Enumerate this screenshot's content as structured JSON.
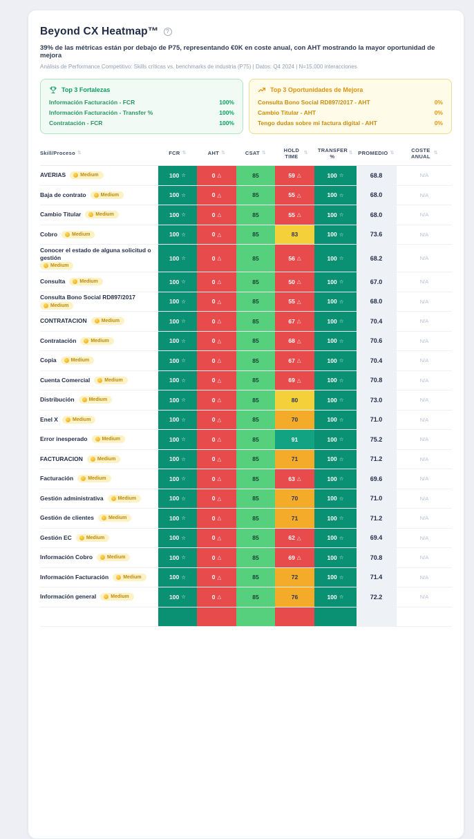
{
  "colors": {
    "green_cell": "#0a9174",
    "red_cell": "#e84b4b",
    "light_green_cell": "#57d07e",
    "teal_cell": "#11a382",
    "yellow_cell": "#f4d03a",
    "amber_cell": "#f3ab29",
    "strength_accent": "#0f9f63",
    "opportunity_accent": "#e0930c",
    "badge_bg": "#fdf2c5",
    "page_bg": "#edeff4"
  },
  "icons": {
    "star": "☆",
    "warn": "△",
    "sort": "⇅",
    "help": "?"
  },
  "header": {
    "title": "Beyond CX Heatmap™",
    "subtitle": "39% de las métricas están por debajo de P75, representando €0K en coste anual, con AHT mostrando la mayor oportunidad de mejora",
    "meta": "Análisis de Performance Competitivo: Skills críticas vs. benchmarks de industria (P75) | Datos: Q4 2024 | N=15,000 interacciones"
  },
  "strengths_card": {
    "title": "Top 3 Fortalezas",
    "items": [
      {
        "label": "Información Facturación - FCR",
        "value": "100%"
      },
      {
        "label": "Información Facturación - Transfer %",
        "value": "100%"
      },
      {
        "label": "Contratación - FCR",
        "value": "100%"
      }
    ]
  },
  "opportunities_card": {
    "title": "Top 3 Oportunidades de Mejora",
    "items": [
      {
        "label": "Consulta Bono Social RD897/2017 - AHT",
        "value": "0%"
      },
      {
        "label": "Cambio Titular - AHT",
        "value": "0%"
      },
      {
        "label": "Tengo dudas sobre mi factura digital - AHT",
        "value": "0%"
      }
    ]
  },
  "table": {
    "columns": [
      "Skill/Proceso",
      "FCR",
      "AHT",
      "CSAT",
      "HOLD TIME",
      "TRANSFER %",
      "PROMEDIO",
      "COSTE ANUAL"
    ],
    "rows": [
      {
        "skill": "AVERIAS",
        "badge": "Medium",
        "fcr": "100",
        "aht": "0",
        "csat": "85",
        "hold": "59",
        "hold_level": "red",
        "transfer": "100",
        "promedio": "68.8",
        "coste": "N/A"
      },
      {
        "skill": "Baja de contrato",
        "badge": "Medium",
        "fcr": "100",
        "aht": "0",
        "csat": "85",
        "hold": "55",
        "hold_level": "red",
        "transfer": "100",
        "promedio": "68.0",
        "coste": "N/A"
      },
      {
        "skill": "Cambio Titular",
        "badge": "Medium",
        "fcr": "100",
        "aht": "0",
        "csat": "85",
        "hold": "55",
        "hold_level": "red",
        "transfer": "100",
        "promedio": "68.0",
        "coste": "N/A"
      },
      {
        "skill": "Cobro",
        "badge": "Medium",
        "fcr": "100",
        "aht": "0",
        "csat": "85",
        "hold": "83",
        "hold_level": "yellow",
        "transfer": "100",
        "promedio": "73.6",
        "coste": "N/A"
      },
      {
        "skill": "Conocer el estado de alguna solicitud o gestión",
        "badge": "Medium",
        "tall": true,
        "fcr": "100",
        "aht": "0",
        "csat": "85",
        "hold": "56",
        "hold_level": "red",
        "transfer": "100",
        "promedio": "68.2",
        "coste": "N/A"
      },
      {
        "skill": "Consulta",
        "badge": "Medium",
        "fcr": "100",
        "aht": "0",
        "csat": "85",
        "hold": "50",
        "hold_level": "red",
        "transfer": "100",
        "promedio": "67.0",
        "coste": "N/A"
      },
      {
        "skill": "Consulta Bono Social RD897/2017",
        "badge": "Medium",
        "fcr": "100",
        "aht": "0",
        "csat": "85",
        "hold": "55",
        "hold_level": "red",
        "transfer": "100",
        "promedio": "68.0",
        "coste": "N/A"
      },
      {
        "skill": "CONTRATACION",
        "badge": "Medium",
        "fcr": "100",
        "aht": "0",
        "csat": "85",
        "hold": "67",
        "hold_level": "red",
        "transfer": "100",
        "promedio": "70.4",
        "coste": "N/A"
      },
      {
        "skill": "Contratación",
        "badge": "Medium",
        "fcr": "100",
        "aht": "0",
        "csat": "85",
        "hold": "68",
        "hold_level": "red",
        "transfer": "100",
        "promedio": "70.6",
        "coste": "N/A"
      },
      {
        "skill": "Copia",
        "badge": "Medium",
        "fcr": "100",
        "aht": "0",
        "csat": "85",
        "hold": "67",
        "hold_level": "red",
        "transfer": "100",
        "promedio": "70.4",
        "coste": "N/A"
      },
      {
        "skill": "Cuenta Comercial",
        "badge": "Medium",
        "fcr": "100",
        "aht": "0",
        "csat": "85",
        "hold": "69",
        "hold_level": "red",
        "transfer": "100",
        "promedio": "70.8",
        "coste": "N/A"
      },
      {
        "skill": "Distribución",
        "badge": "Medium",
        "fcr": "100",
        "aht": "0",
        "csat": "85",
        "hold": "80",
        "hold_level": "yellow",
        "transfer": "100",
        "promedio": "73.0",
        "coste": "N/A"
      },
      {
        "skill": "Enel X",
        "badge": "Medium",
        "fcr": "100",
        "aht": "0",
        "csat": "85",
        "hold": "70",
        "hold_level": "amber",
        "transfer": "100",
        "promedio": "71.0",
        "coste": "N/A"
      },
      {
        "skill": "Error inesperado",
        "badge": "Medium",
        "fcr": "100",
        "aht": "0",
        "csat": "85",
        "hold": "91",
        "hold_level": "teal",
        "transfer": "100",
        "promedio": "75.2",
        "coste": "N/A"
      },
      {
        "skill": "FACTURACION",
        "badge": "Medium",
        "fcr": "100",
        "aht": "0",
        "csat": "85",
        "hold": "71",
        "hold_level": "amber",
        "transfer": "100",
        "promedio": "71.2",
        "coste": "N/A"
      },
      {
        "skill": "Facturación",
        "badge": "Medium",
        "fcr": "100",
        "aht": "0",
        "csat": "85",
        "hold": "63",
        "hold_level": "red",
        "transfer": "100",
        "promedio": "69.6",
        "coste": "N/A"
      },
      {
        "skill": "Gestión administrativa",
        "badge": "Medium",
        "fcr": "100",
        "aht": "0",
        "csat": "85",
        "hold": "70",
        "hold_level": "amber",
        "transfer": "100",
        "promedio": "71.0",
        "coste": "N/A"
      },
      {
        "skill": "Gestión de clientes",
        "badge": "Medium",
        "fcr": "100",
        "aht": "0",
        "csat": "85",
        "hold": "71",
        "hold_level": "amber",
        "transfer": "100",
        "promedio": "71.2",
        "coste": "N/A"
      },
      {
        "skill": "Gestión EC",
        "badge": "Medium",
        "fcr": "100",
        "aht": "0",
        "csat": "85",
        "hold": "62",
        "hold_level": "red",
        "transfer": "100",
        "promedio": "69.4",
        "coste": "N/A"
      },
      {
        "skill": "Información Cobro",
        "badge": "Medium",
        "fcr": "100",
        "aht": "0",
        "csat": "85",
        "hold": "69",
        "hold_level": "red",
        "transfer": "100",
        "promedio": "70.8",
        "coste": "N/A"
      },
      {
        "skill": "Información Facturación",
        "badge": "Medium",
        "fcr": "100",
        "aht": "0",
        "csat": "85",
        "hold": "72",
        "hold_level": "amber",
        "transfer": "100",
        "promedio": "71.4",
        "coste": "N/A"
      },
      {
        "skill": "Información general",
        "badge": "Medium",
        "fcr": "100",
        "aht": "0",
        "csat": "85",
        "hold": "76",
        "hold_level": "amber",
        "transfer": "100",
        "promedio": "72.2",
        "coste": "N/A"
      }
    ],
    "cutoff_row": {
      "fcr_level": "green",
      "aht_level": "red",
      "csat_level": "lgreen",
      "hold_level": "red",
      "transfer_level": "green"
    }
  }
}
